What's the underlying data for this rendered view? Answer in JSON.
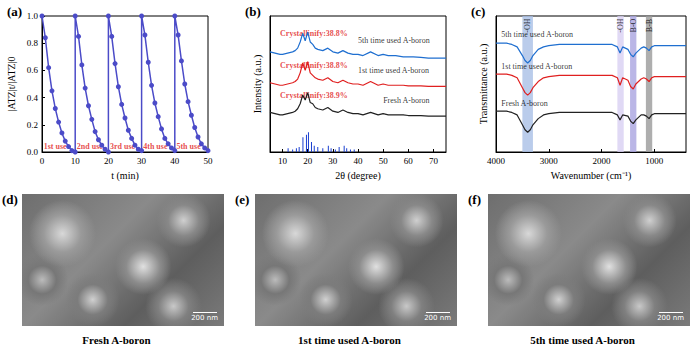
{
  "chart_data": [
    {
      "type": "line",
      "title": "(a)",
      "xlabel": "t (min)",
      "ylabel": "|ATZ|t/|ATZ|0",
      "marker": "circle",
      "grid": false,
      "xlim": [
        0,
        50
      ],
      "xticks": [
        0,
        10,
        20,
        30,
        40,
        50
      ],
      "ylim": [
        0,
        1
      ],
      "yticks": [
        {
          "value": 0,
          "label": "0.0"
        },
        0.2,
        0.4,
        0.6,
        0.8,
        {
          "value": 1,
          "label": "1.0"
        }
      ],
      "x": [
        0,
        1,
        2,
        3,
        4,
        5,
        6,
        7,
        8,
        9,
        10,
        10,
        11,
        12,
        13,
        14,
        15,
        16,
        17,
        18,
        19,
        20,
        20,
        21,
        22,
        23,
        24,
        25,
        26,
        27,
        28,
        29,
        30,
        30,
        31,
        32,
        33,
        34,
        35,
        36,
        37,
        38,
        39,
        40,
        40,
        41,
        42,
        43,
        44,
        45,
        46,
        47,
        48,
        49,
        50
      ],
      "series": [
        {
          "color": "#4b4bc8",
          "values": [
            1.0,
            0.84,
            0.62,
            0.45,
            0.32,
            0.22,
            0.14,
            0.08,
            0.04,
            0.01,
            0.0,
            1.0,
            0.85,
            0.64,
            0.47,
            0.34,
            0.24,
            0.15,
            0.09,
            0.05,
            0.02,
            0.0,
            1.0,
            0.85,
            0.65,
            0.48,
            0.35,
            0.25,
            0.16,
            0.1,
            0.05,
            0.02,
            0.01,
            1.0,
            0.86,
            0.66,
            0.49,
            0.36,
            0.26,
            0.17,
            0.1,
            0.06,
            0.03,
            0.01,
            1.0,
            0.86,
            0.67,
            0.5,
            0.37,
            0.27,
            0.18,
            0.11,
            0.06,
            0.03,
            0.01
          ]
        }
      ],
      "annotations": [
        {
          "text": "1st use",
          "x": 0.5,
          "y": 0.04,
          "color": "#e02020"
        },
        {
          "text": "2nd use",
          "x": 10.5,
          "y": 0.04,
          "color": "#e02020"
        },
        {
          "text": "3rd use",
          "x": 20.5,
          "y": 0.04,
          "color": "#e02020"
        },
        {
          "text": "4th use",
          "x": 30.5,
          "y": 0.04,
          "color": "#e02020"
        },
        {
          "text": "5th use",
          "x": 40.5,
          "y": 0.04,
          "color": "#e02020"
        }
      ]
    },
    {
      "type": "line",
      "title": "(b)",
      "xlabel": "2θ (degree)",
      "ylabel": "Intensity (a.u.)",
      "tick_labels": "x",
      "grid": false,
      "xlim": [
        5,
        75
      ],
      "xticks": [
        10,
        20,
        30,
        40,
        50,
        60,
        70
      ],
      "ylim": [
        0,
        11
      ],
      "x": [
        5,
        7,
        9,
        10,
        12,
        14,
        15,
        16,
        17,
        18,
        19,
        20,
        21,
        22,
        23,
        24,
        26,
        28,
        30,
        32,
        34,
        35,
        36,
        38,
        40,
        42,
        45,
        48,
        50,
        52,
        55,
        58,
        60,
        62,
        65,
        68,
        70,
        72,
        75
      ],
      "series": [
        {
          "name": "Fresh A-boron",
          "color": "#222222",
          "label_at": [
            50,
            4.2
          ],
          "values": [
            3.2,
            3.1,
            3.0,
            3.0,
            3.1,
            3.2,
            3.3,
            3.5,
            3.9,
            4.6,
            4.2,
            4.8,
            4.0,
            3.9,
            3.6,
            3.5,
            3.4,
            3.6,
            3.3,
            3.2,
            3.4,
            3.3,
            3.2,
            3.1,
            3.1,
            3.0,
            3.2,
            3.0,
            3.1,
            3.0,
            3.0,
            3.0,
            2.95,
            2.95,
            2.95,
            2.9,
            2.9,
            2.9,
            2.9
          ]
        },
        {
          "name": "1st time used A-boron",
          "color": "#e02020",
          "label_at": [
            40,
            6.6
          ],
          "values": [
            5.6,
            5.5,
            5.4,
            5.4,
            5.5,
            5.6,
            5.7,
            5.9,
            6.4,
            7.2,
            6.6,
            7.3,
            6.4,
            6.2,
            6.0,
            5.9,
            5.8,
            6.0,
            5.7,
            5.6,
            5.8,
            5.7,
            5.6,
            5.5,
            5.5,
            5.4,
            5.7,
            5.4,
            5.5,
            5.4,
            5.4,
            5.4,
            5.35,
            5.35,
            5.35,
            5.3,
            5.3,
            5.3,
            5.3
          ]
        },
        {
          "name": "5th time used A-boron",
          "color": "#1f6fd0",
          "label_at": [
            40,
            9.0
          ],
          "values": [
            8.1,
            8.0,
            7.9,
            7.9,
            8.0,
            8.1,
            8.2,
            8.4,
            8.9,
            9.6,
            9.0,
            9.7,
            8.9,
            8.7,
            8.4,
            8.3,
            8.2,
            8.4,
            8.1,
            8.0,
            8.2,
            8.1,
            8.0,
            7.9,
            7.9,
            7.8,
            8.1,
            7.8,
            7.9,
            7.8,
            7.8,
            7.7,
            7.7,
            7.7,
            7.65,
            7.6,
            7.6,
            7.6,
            7.6
          ]
        },
        {
          "type": "bar",
          "color": "#1a3fd0",
          "x": [
            12.2,
            14,
            15.5,
            16.6,
            18.1,
            19.5,
            20.3,
            21.5,
            22.6,
            24,
            26,
            28.2,
            29.3,
            31,
            32.5,
            34.5,
            35.5,
            37,
            38.5
          ],
          "values": [
            0.3,
            0.2,
            0.3,
            0.4,
            1.2,
            1.4,
            1.6,
            0.8,
            0.5,
            0.4,
            0.3,
            0.5,
            0.3,
            0.2,
            0.4,
            0.5,
            0.3,
            0.2,
            0.2
          ]
        }
      ],
      "annotations": [
        {
          "text": "Crystallinify:38.9%",
          "x": 9,
          "y": 4.6,
          "color": "#e02020"
        },
        {
          "text": "Crystallinify:38.8%",
          "x": 9,
          "y": 7.0,
          "color": "#e02020"
        },
        {
          "text": "Crystallinify:38.8%",
          "x": 9,
          "y": 9.6,
          "color": "#e02020"
        }
      ]
    },
    {
      "type": "line",
      "title": "(c)",
      "xlabel": "Wavenumber (cm⁻¹)",
      "ylabel": "Transmittance (a.u.)",
      "tick_labels": "x",
      "grid": false,
      "xlim": [
        4000,
        400
      ],
      "xticks": [
        4000,
        3000,
        2000,
        1000
      ],
      "ylim": [
        0,
        11
      ],
      "x": [
        4000,
        3800,
        3700,
        3600,
        3500,
        3450,
        3400,
        3350,
        3300,
        3200,
        3100,
        3000,
        2800,
        2500,
        2200,
        2000,
        1800,
        1700,
        1650,
        1600,
        1500,
        1450,
        1400,
        1350,
        1250,
        1200,
        1150,
        1100,
        1050,
        1000,
        900,
        800,
        700,
        600,
        500,
        400
      ],
      "series": [
        {
          "name": "Fresh A-boron",
          "color": "#222222",
          "label_at": [
            3900,
            3.9
          ],
          "values": [
            3.3,
            3.3,
            3.2,
            3.0,
            2.2,
            1.8,
            1.6,
            1.8,
            2.2,
            2.7,
            3.0,
            3.1,
            3.2,
            3.2,
            3.2,
            3.2,
            3.2,
            3.0,
            2.6,
            3.0,
            2.9,
            2.5,
            2.3,
            2.6,
            3.0,
            3.0,
            2.9,
            2.7,
            3.0,
            3.1,
            3.1,
            3.1,
            3.1,
            3.1,
            3.1,
            3.1
          ]
        },
        {
          "name": "1st time used A-boron",
          "color": "#e02020",
          "label_at": [
            3900,
            6.9
          ],
          "values": [
            6.3,
            6.3,
            6.2,
            6.0,
            5.2,
            4.8,
            4.6,
            4.8,
            5.2,
            5.7,
            6.0,
            6.1,
            6.2,
            6.2,
            6.2,
            6.2,
            6.2,
            6.0,
            5.4,
            6.0,
            5.8,
            5.3,
            5.1,
            5.5,
            5.9,
            6.0,
            5.9,
            5.7,
            6.0,
            6.1,
            6.1,
            6.1,
            6.1,
            6.1,
            6.1,
            6.1
          ]
        },
        {
          "name": "5th time used A-boron",
          "color": "#1f6fd0",
          "label_at": [
            3900,
            9.5
          ],
          "values": [
            8.8,
            8.8,
            8.7,
            8.5,
            7.8,
            7.4,
            7.2,
            7.4,
            7.8,
            8.3,
            8.5,
            8.6,
            8.7,
            8.7,
            8.7,
            8.7,
            8.7,
            8.5,
            8.0,
            8.5,
            8.3,
            7.9,
            7.7,
            8.0,
            8.4,
            8.5,
            8.4,
            8.2,
            8.5,
            8.6,
            8.6,
            8.6,
            8.6,
            8.6,
            8.6,
            8.6
          ]
        }
      ],
      "bands": [
        {
          "label": "-OH",
          "from": 3500,
          "to": 3300,
          "color": "#a9bfe6"
        },
        {
          "label": "-OH",
          "from": 1700,
          "to": 1580,
          "color": "#d8d0f2"
        },
        {
          "label": "B-O",
          "from": 1460,
          "to": 1340,
          "color": "#a9a4e0"
        },
        {
          "label": "B-B",
          "from": 1160,
          "to": 1040,
          "color": "#9a9a9a"
        }
      ]
    }
  ],
  "images": [
    {
      "title": "(d)",
      "caption": "Fresh A-boron",
      "scale_bar": "200 nm"
    },
    {
      "title": "(e)",
      "caption": "1st time used A-boron",
      "scale_bar": "200 nm"
    },
    {
      "title": "(f)",
      "caption": "5th time used A-boron",
      "scale_bar": "200 nm"
    }
  ]
}
